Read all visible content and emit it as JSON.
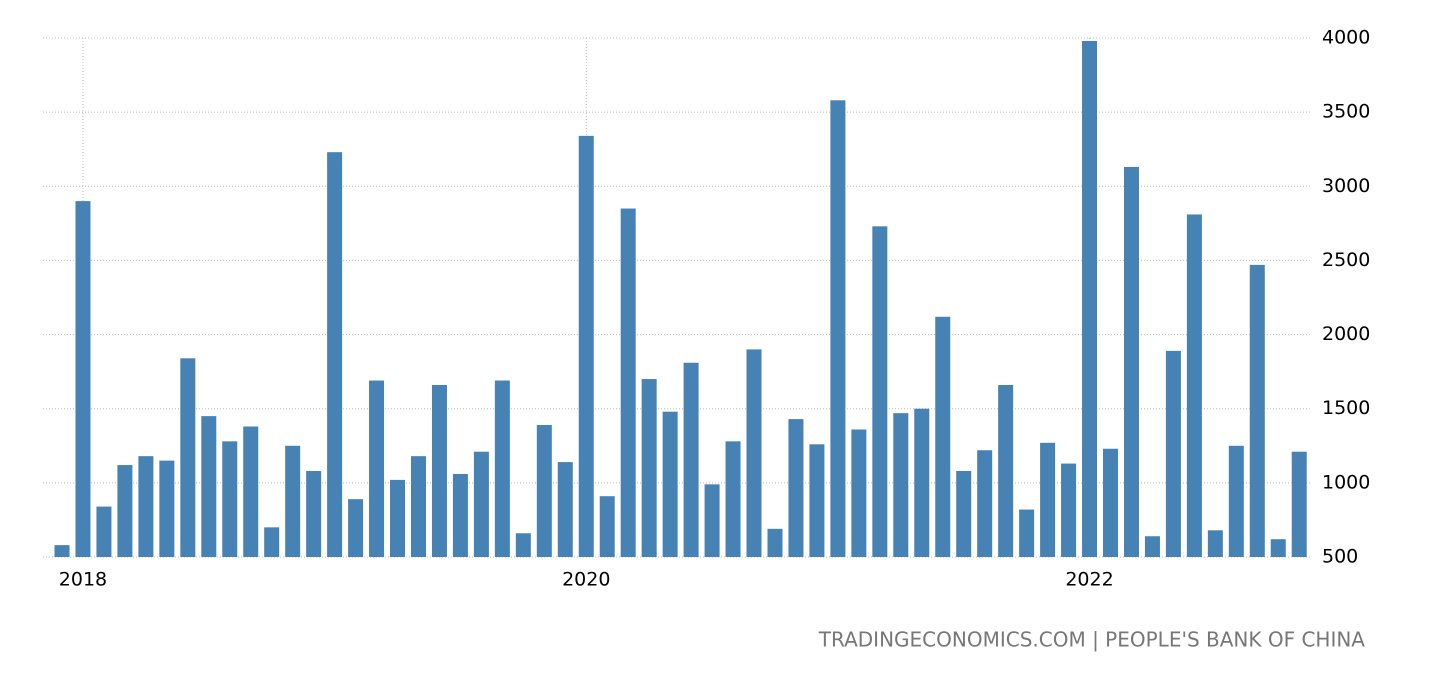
{
  "chart_data": {
    "type": "bar",
    "source": "TRADINGECONOMICS.COM | PEOPLE'S BANK OF CHINA",
    "categories": [
      null,
      "2018",
      null,
      null,
      null,
      null,
      null,
      null,
      null,
      null,
      null,
      null,
      null,
      null,
      null,
      null,
      null,
      null,
      null,
      null,
      null,
      null,
      null,
      null,
      null,
      "2020",
      null,
      null,
      null,
      null,
      null,
      null,
      null,
      null,
      null,
      null,
      null,
      null,
      null,
      null,
      null,
      null,
      null,
      null,
      null,
      null,
      null,
      null,
      null,
      "2022",
      null,
      null,
      null,
      null,
      null,
      null,
      null,
      null,
      null,
      null
    ],
    "values": [
      580,
      2900,
      840,
      1120,
      1180,
      1150,
      1840,
      1450,
      1280,
      1380,
      700,
      1250,
      1080,
      3230,
      890,
      1690,
      1020,
      1180,
      1660,
      1060,
      1210,
      1690,
      660,
      1390,
      1140,
      3340,
      910,
      2850,
      1700,
      1480,
      1810,
      990,
      1280,
      1900,
      690,
      1430,
      1260,
      3580,
      1360,
      2730,
      1470,
      1500,
      2120,
      1080,
      1220,
      1660,
      820,
      1270,
      1130,
      3980,
      1230,
      3130,
      640,
      1890,
      2810,
      680,
      1250,
      2470,
      620,
      1210
    ],
    "color": "#4682b4",
    "ylim": [
      500,
      4000
    ],
    "yticks": [
      500,
      1000,
      1500,
      2000,
      2500,
      3000,
      3500,
      4000
    ],
    "grid": true
  }
}
